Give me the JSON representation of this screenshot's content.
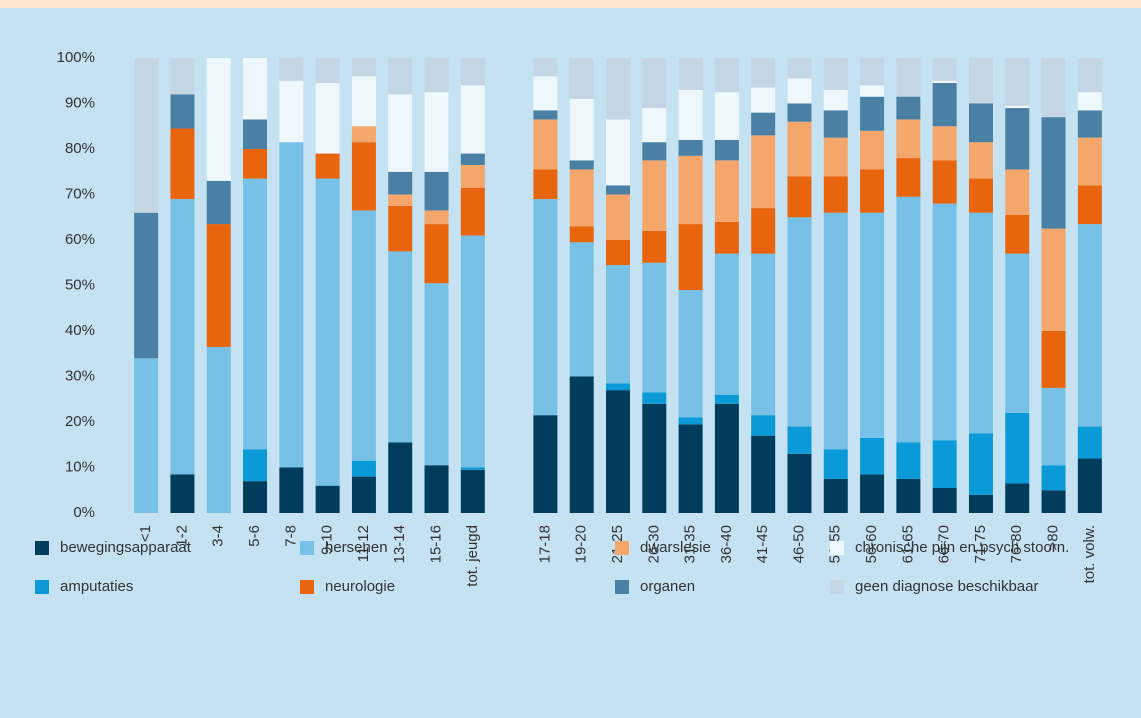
{
  "chart_data": {
    "type": "stacked_bar",
    "categories": [
      "<1",
      "1-2",
      "3-4",
      "5-6",
      "7-8",
      "9-10",
      "11-12",
      "13-14",
      "15-16",
      "tot. jeugd",
      null,
      "17-18",
      "19-20",
      "21-25",
      "26-30",
      "31-35",
      "36-40",
      "41-45",
      "46-50",
      "51-55",
      "56-60",
      "61-65",
      "66-70",
      "71-75",
      "76-80",
      ">80",
      "tot. volw."
    ],
    "series": [
      {
        "name": "bewegingsapparaat",
        "color": "#003d5c",
        "values": [
          0,
          8.5,
          0,
          7,
          10,
          6,
          8,
          15.5,
          10.5,
          9.5,
          null,
          21.5,
          30,
          27,
          24,
          19.5,
          24,
          17,
          13,
          7.5,
          8.5,
          7.5,
          5.5,
          4,
          6.5,
          5,
          12
        ]
      },
      {
        "name": "amputaties",
        "color": "#0a9ad7",
        "values": [
          0,
          0,
          0,
          7,
          0,
          0,
          3.5,
          0,
          0,
          0.5,
          null,
          0,
          0,
          1.5,
          2.5,
          1.5,
          2,
          4.5,
          6,
          6.5,
          8,
          8,
          10.5,
          13.5,
          15.5,
          5.5,
          7
        ]
      },
      {
        "name": "hersenen",
        "color": "#78c1e6",
        "values": [
          34,
          60.5,
          36.5,
          59.5,
          71.5,
          67.5,
          55,
          42,
          40,
          51,
          null,
          47.5,
          29.5,
          26,
          28.5,
          28,
          31,
          35.5,
          46,
          52,
          49.5,
          54,
          52,
          48.5,
          35,
          17,
          44.5
        ]
      },
      {
        "name": "neurologie",
        "color": "#e8640d",
        "values": [
          0,
          15.5,
          27,
          6.5,
          0,
          5.5,
          15,
          10,
          13,
          10.5,
          null,
          6.5,
          3.5,
          5.5,
          7,
          14.5,
          7,
          10,
          9,
          8,
          9.5,
          8.5,
          9.5,
          7.5,
          8.5,
          12.5,
          8.5
        ]
      },
      {
        "name": "dwarslesie",
        "color": "#f5a66b",
        "values": [
          0,
          0,
          0,
          0,
          0,
          0,
          3.5,
          2.5,
          3,
          5,
          null,
          11,
          12.5,
          10,
          15.5,
          15,
          13.5,
          16,
          12,
          8.5,
          8.5,
          8.5,
          7.5,
          8,
          10,
          22.5,
          10.5
        ]
      },
      {
        "name": "organen",
        "color": "#4a80a3",
        "values": [
          32,
          7.5,
          9.5,
          6.5,
          0,
          0,
          0,
          5,
          8.5,
          2.5,
          null,
          2,
          2,
          2,
          4,
          3.5,
          4.5,
          5,
          4,
          6,
          7.5,
          5,
          9.5,
          8.5,
          13.5,
          24.5,
          6
        ]
      },
      {
        "name": "chronische pijn en psych stoorn.",
        "color": "#eef7fc",
        "values": [
          0,
          0,
          27,
          13.5,
          13.5,
          15.5,
          11,
          17,
          17.5,
          15,
          null,
          7.5,
          13.5,
          14.5,
          7.5,
          11,
          10.5,
          5.5,
          5.5,
          4.5,
          2.5,
          0,
          0.5,
          0,
          0.5,
          0,
          4
        ]
      },
      {
        "name": "geen diagnose beschikbaar",
        "color": "#c4d5e3",
        "values": [
          34,
          8,
          0,
          0,
          5,
          5.5,
          4,
          8,
          7.5,
          6,
          null,
          4,
          9,
          13.5,
          11,
          7,
          7.5,
          6.5,
          4.5,
          7,
          6,
          8.5,
          5,
          10,
          10.5,
          13,
          7.5
        ]
      }
    ],
    "ylim": [
      0,
      100
    ],
    "yticks": [
      {
        "value": 0,
        "label": "0%"
      },
      {
        "value": 10,
        "label": "10%"
      },
      {
        "value": 20,
        "label": "20%"
      },
      {
        "value": 30,
        "label": "30%"
      },
      {
        "value": 40,
        "label": "40%"
      },
      {
        "value": 50,
        "label": "50%"
      },
      {
        "value": 60,
        "label": "60%"
      },
      {
        "value": 70,
        "label": "70%"
      },
      {
        "value": 80,
        "label": "80%"
      },
      {
        "value": 90,
        "label": "90%"
      },
      {
        "value": 100,
        "label": "100%"
      }
    ],
    "grid": false,
    "legend": "bottom"
  }
}
